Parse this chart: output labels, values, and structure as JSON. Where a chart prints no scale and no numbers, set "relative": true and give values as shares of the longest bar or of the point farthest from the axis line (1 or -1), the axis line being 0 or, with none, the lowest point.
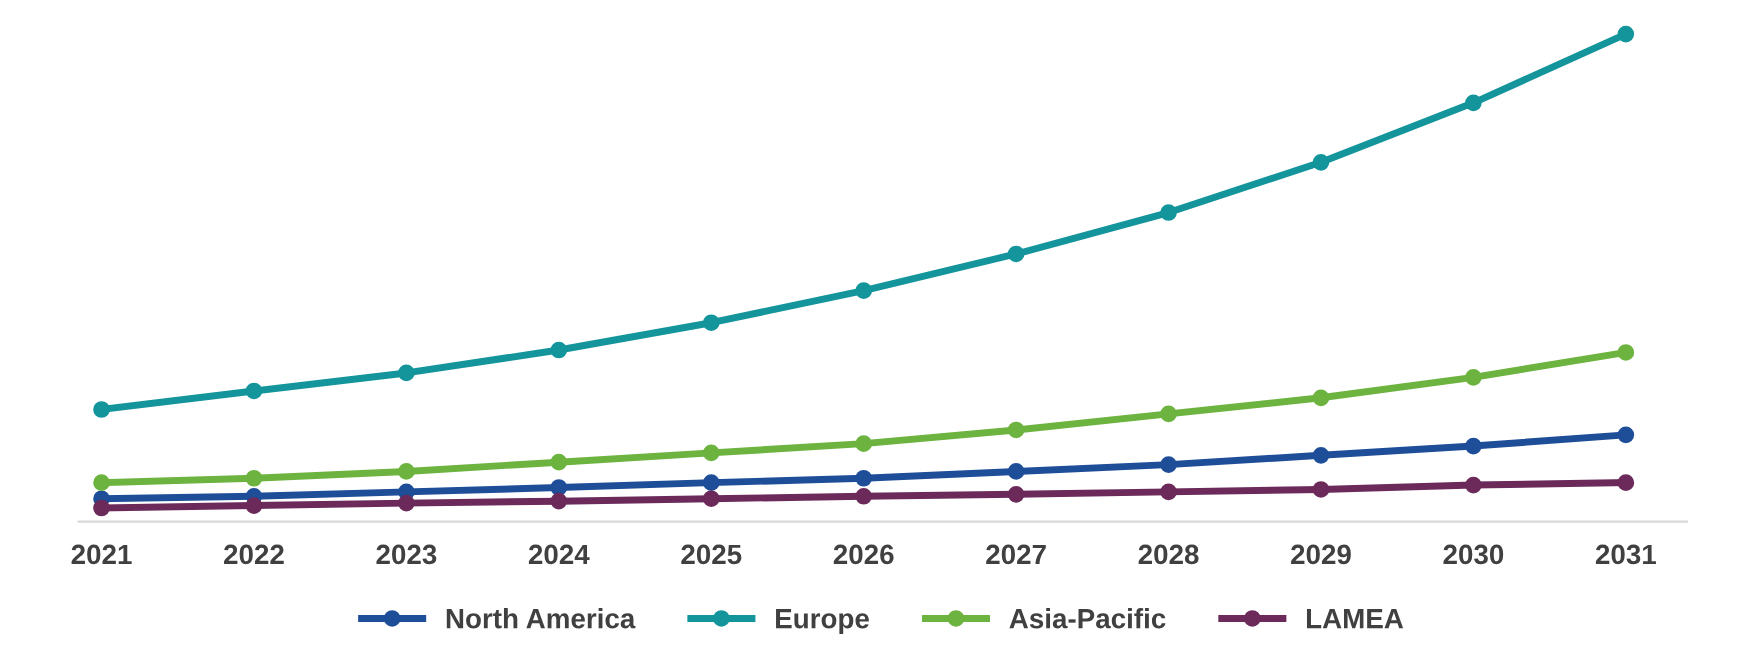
{
  "chart_data": {
    "type": "line",
    "relative": true,
    "categories": [
      "2021",
      "2022",
      "2023",
      "2024",
      "2025",
      "2026",
      "2027",
      "2028",
      "2029",
      "2030",
      "2031"
    ],
    "series": [
      {
        "name": "North America",
        "color": "#1f4e99",
        "values": [
          0.047,
          0.052,
          0.061,
          0.07,
          0.08,
          0.089,
          0.103,
          0.117,
          0.136,
          0.155,
          0.178
        ]
      },
      {
        "name": "Europe",
        "color": "#13959b",
        "values": [
          0.23,
          0.268,
          0.305,
          0.352,
          0.408,
          0.474,
          0.549,
          0.634,
          0.737,
          0.859,
          1
        ]
      },
      {
        "name": "Asia-Pacific",
        "color": "#6db33f",
        "values": [
          0.08,
          0.089,
          0.103,
          0.122,
          0.141,
          0.16,
          0.188,
          0.221,
          0.254,
          0.296,
          0.347
        ]
      },
      {
        "name": "LAMEA",
        "color": "#6b2a5a",
        "values": [
          0.028,
          0.033,
          0.038,
          0.042,
          0.047,
          0.052,
          0.056,
          0.061,
          0.066,
          0.075,
          0.08
        ]
      }
    ],
    "marker": "circle",
    "line_style": "solid",
    "grid": false,
    "legend": "bottom"
  }
}
